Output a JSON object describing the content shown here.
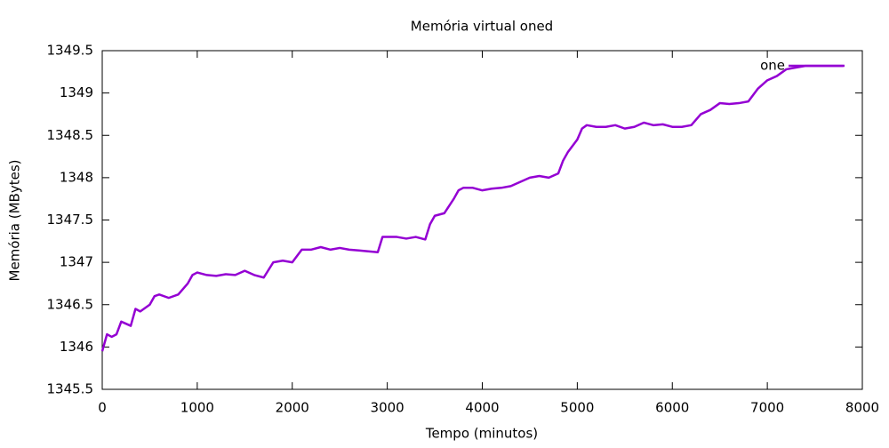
{
  "chart_data": {
    "type": "line",
    "title": "Memória virtual oned",
    "xlabel": "Tempo (minutos)",
    "ylabel": "Memória (MBytes)",
    "x": [
      0,
      50,
      100,
      150,
      200,
      300,
      350,
      400,
      500,
      550,
      600,
      700,
      800,
      900,
      950,
      1000,
      1100,
      1200,
      1300,
      1400,
      1500,
      1600,
      1700,
      1800,
      1900,
      2000,
      2100,
      2200,
      2300,
      2400,
      2500,
      2600,
      2700,
      2800,
      2900,
      2950,
      3000,
      3100,
      3200,
      3300,
      3400,
      3450,
      3500,
      3600,
      3700,
      3750,
      3800,
      3900,
      4000,
      4100,
      4200,
      4300,
      4400,
      4500,
      4600,
      4700,
      4800,
      4850,
      4900,
      5000,
      5050,
      5100,
      5200,
      5300,
      5400,
      5500,
      5600,
      5700,
      5800,
      5900,
      6000,
      6100,
      6200,
      6300,
      6400,
      6500,
      6600,
      6700,
      6800,
      6900,
      7000,
      7100,
      7200,
      7300,
      7400,
      7800
    ],
    "series": [
      {
        "name": "one",
        "color": "#9400d3",
        "values": [
          1345.95,
          1346.15,
          1346.12,
          1346.15,
          1346.3,
          1346.25,
          1346.45,
          1346.42,
          1346.5,
          1346.6,
          1346.62,
          1346.58,
          1346.62,
          1346.75,
          1346.85,
          1346.88,
          1346.85,
          1346.84,
          1346.86,
          1346.85,
          1346.9,
          1346.85,
          1346.82,
          1347.0,
          1347.02,
          1347.0,
          1347.15,
          1347.15,
          1347.18,
          1347.15,
          1347.17,
          1347.15,
          1347.14,
          1347.13,
          1347.12,
          1347.3,
          1347.3,
          1347.3,
          1347.28,
          1347.3,
          1347.27,
          1347.45,
          1347.55,
          1347.58,
          1347.75,
          1347.85,
          1347.88,
          1347.88,
          1347.85,
          1347.87,
          1347.88,
          1347.9,
          1347.95,
          1348.0,
          1348.02,
          1348.0,
          1348.05,
          1348.2,
          1348.3,
          1348.45,
          1348.58,
          1348.62,
          1348.6,
          1348.6,
          1348.62,
          1348.58,
          1348.6,
          1348.65,
          1348.62,
          1348.63,
          1348.6,
          1348.6,
          1348.62,
          1348.75,
          1348.8,
          1348.88,
          1348.87,
          1348.88,
          1348.9,
          1349.05,
          1349.15,
          1349.2,
          1349.28,
          1349.3,
          1349.32,
          1349.32
        ]
      }
    ],
    "xlim": [
      0,
      8000
    ],
    "xticks": [
      0,
      1000,
      2000,
      3000,
      4000,
      5000,
      6000,
      7000,
      8000
    ],
    "ylim": [
      1345.5,
      1349.5
    ],
    "yticks": [
      1345.5,
      1346,
      1346.5,
      1347,
      1347.5,
      1348,
      1348.5,
      1349,
      1349.5
    ],
    "legend": "top-right"
  }
}
